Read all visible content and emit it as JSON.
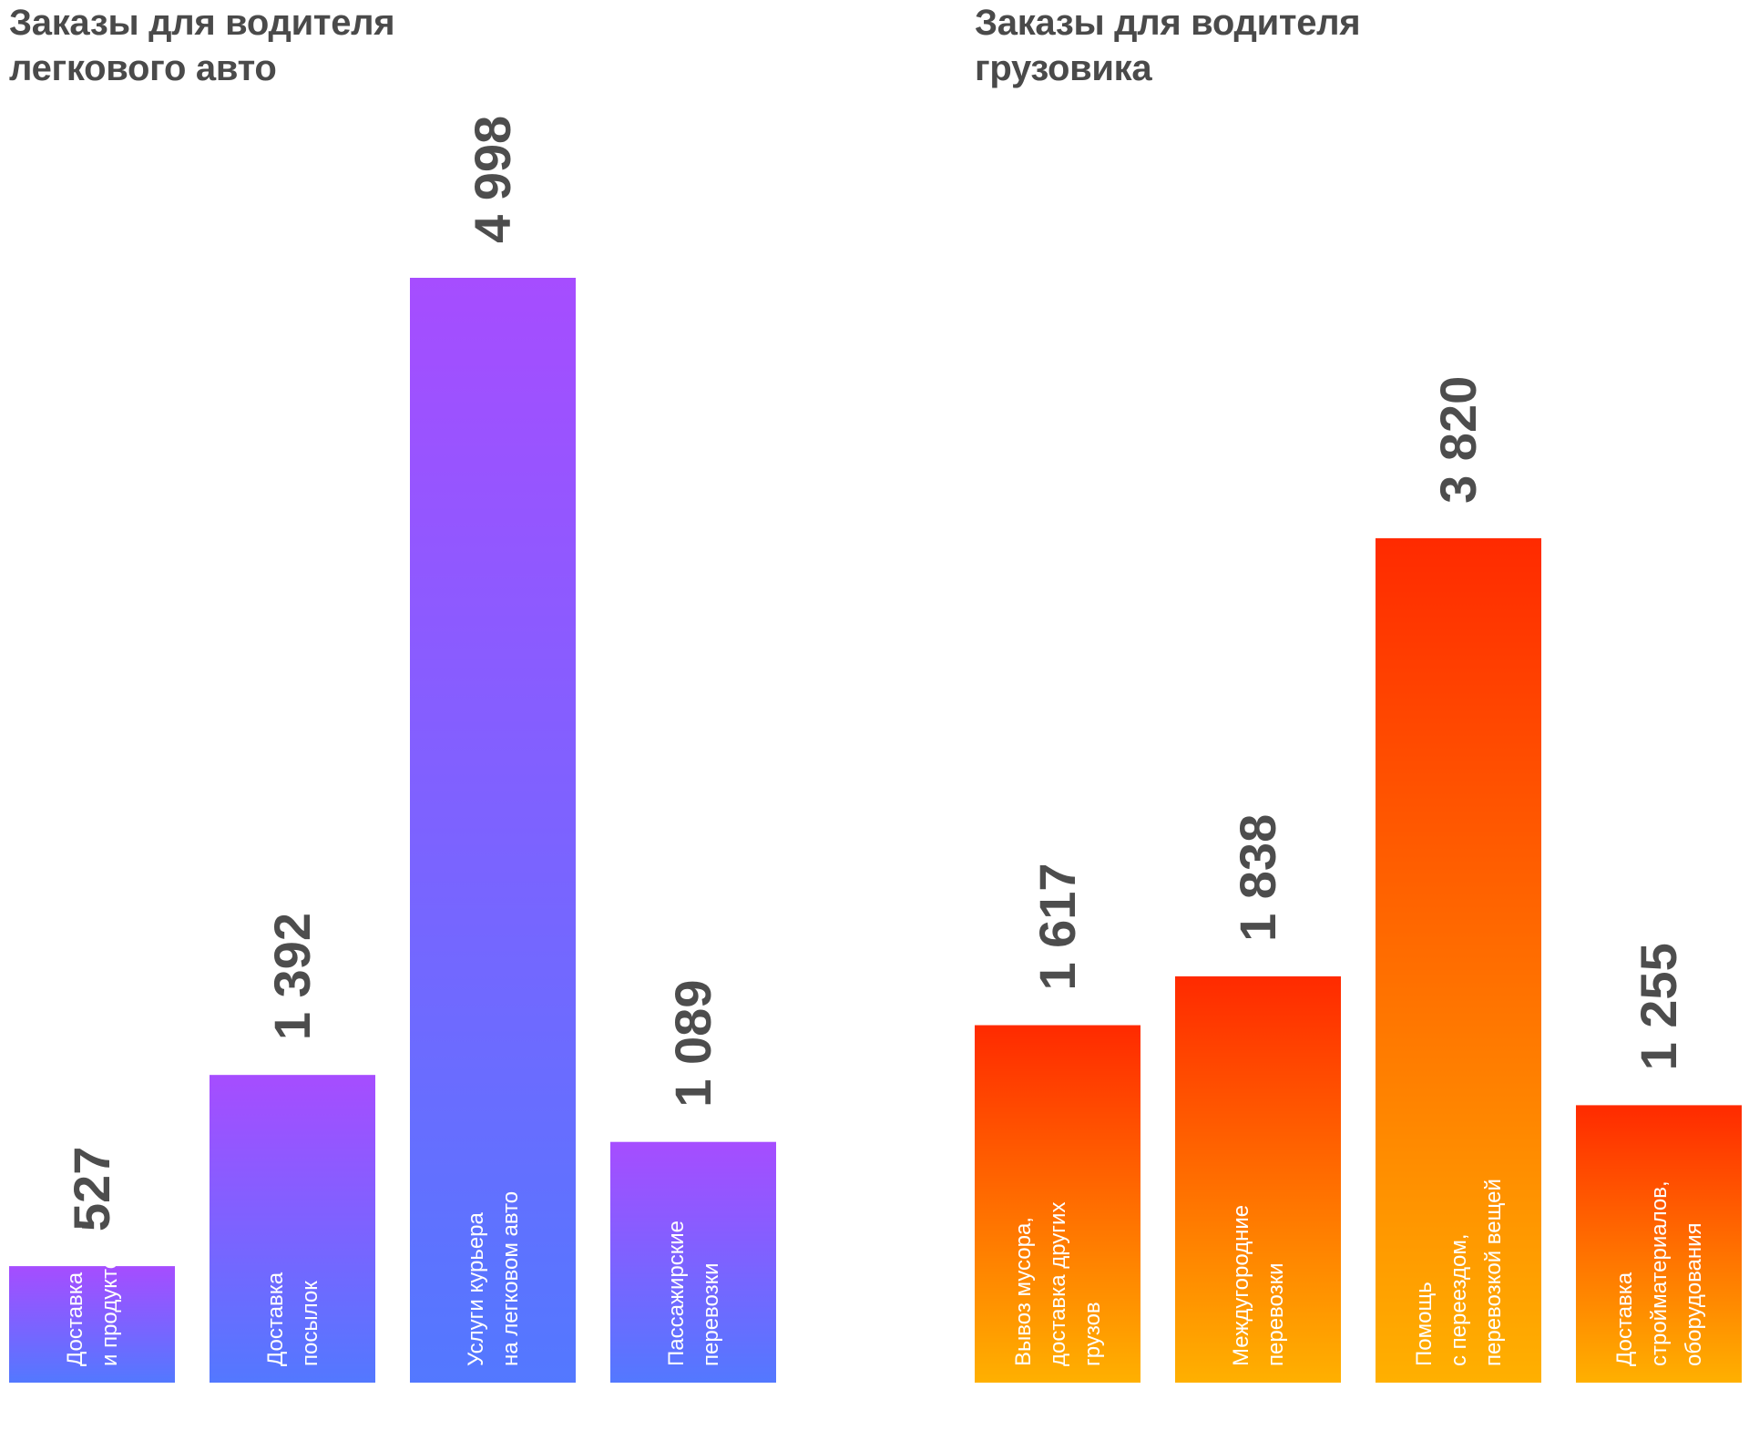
{
  "chart_data": [
    {
      "type": "bar",
      "title": "Заказы для водителя\nлегкового авто",
      "categories": [
        [
          "Доставка еды",
          "и продуктов"
        ],
        [
          "Доставка",
          "посылок"
        ],
        [
          "Услуги курьера",
          "на легковом авто"
        ],
        [
          "Пассажирские",
          "перевозки"
        ]
      ],
      "values": [
        527,
        1392,
        4998,
        1089
      ],
      "value_labels": [
        "527",
        "1 392",
        "4 998",
        "1 089"
      ],
      "ylim": [
        0,
        4998
      ],
      "grid": false,
      "colors": {
        "top": "#a64dff",
        "bottom": "#5378ff"
      }
    },
    {
      "type": "bar",
      "title": "Заказы для водителя\nгрузовика",
      "categories": [
        [
          "Вывоз мусора,",
          "доставка других",
          "грузов"
        ],
        [
          "Междугородние",
          "перевозки"
        ],
        [
          "Помощь",
          "с переездом,",
          "перевозкой вещей"
        ],
        [
          "Доставка",
          "стройматериалов,",
          "оборудования"
        ]
      ],
      "values": [
        1617,
        1838,
        3820,
        1255
      ],
      "value_labels": [
        "1 617",
        "1 838",
        "3 820",
        "1 255"
      ],
      "ylim": [
        0,
        4998
      ],
      "grid": false,
      "colors": {
        "top": "#ff2a00",
        "bottom": "#ffb000"
      }
    }
  ]
}
